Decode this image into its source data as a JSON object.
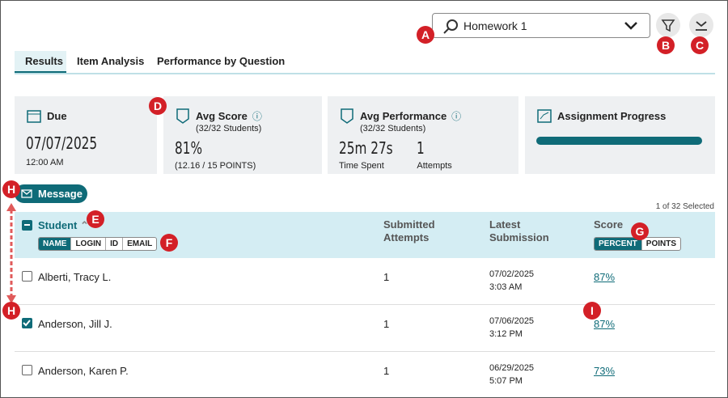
{
  "search": {
    "value": "Homework 1"
  },
  "callouts": [
    "A",
    "B",
    "C",
    "D",
    "E",
    "F",
    "G",
    "H",
    "H",
    "I"
  ],
  "tabs": [
    "Results",
    "Item Analysis",
    "Performance by Question"
  ],
  "cards": [
    {
      "title": "Due",
      "value": "07/07/2025",
      "sub": "12:00 AM"
    },
    {
      "title": "Avg Score",
      "subtitle": "(32/32 Students)",
      "value": "81%",
      "sub": "(12.16 / 15 POINTS)"
    },
    {
      "title": "Avg Performance",
      "subtitle": "(32/32 Students)",
      "stats": [
        {
          "value": "25m 27s",
          "label": "Time Spent"
        },
        {
          "value": "1",
          "label": "Attempts"
        }
      ]
    },
    {
      "title": "Assignment Progress",
      "progress": 100
    }
  ],
  "message_button": "Message",
  "selection": "1 of 32 Selected",
  "table": {
    "headers": [
      "Student",
      "Submitted Attempts",
      "Latest Submission",
      "Score"
    ],
    "name_toggle": [
      "NAME",
      "LOGIN",
      "ID",
      "EMAIL"
    ],
    "score_toggle": [
      "PERCENT",
      "POINTS"
    ],
    "rows": [
      {
        "name": "Alberti, Tracy L.",
        "attempts": 1,
        "date": "07/02/2025",
        "time": "3:03 AM",
        "score": "87%",
        "checked": false
      },
      {
        "name": "Anderson, Jill J.",
        "attempts": 1,
        "date": "07/06/2025",
        "time": "3:12 PM",
        "score": "87%",
        "checked": true
      },
      {
        "name": "Anderson, Karen P.",
        "attempts": 1,
        "date": "06/29/2025",
        "time": "5:07 PM",
        "score": "73%",
        "checked": false
      }
    ]
  }
}
